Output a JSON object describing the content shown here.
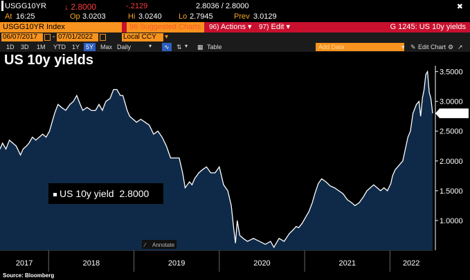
{
  "quote": {
    "ticker": "USGG10YR",
    "last": "↓ 2.8000",
    "change": "-.2129",
    "bid_ask": "2.8036 / 2.8000",
    "close_symbol": "✖"
  },
  "info": {
    "at_label": "At",
    "at_value": "16:25",
    "op_label": "Op",
    "op_value": "3.0203",
    "hi_label": "Hi",
    "hi_value": "3.0240",
    "lo_label": "Lo",
    "lo_value": "2.7945",
    "prev_label": "Prev",
    "prev_value": "3.0129"
  },
  "toolbar": {
    "index_label": "USGG10YR Index",
    "suggested_num": "96",
    "suggested_label": "Suggested Charts",
    "actions_num": "96)",
    "actions_label": "Actions",
    "edit_num": "97)",
    "edit_label": "Edit",
    "graph_label": "G 1245: US 10y yields"
  },
  "daterange": {
    "start": "06/07/2017",
    "end": "07/01/2022",
    "currency": "Local CCY"
  },
  "controls": {
    "periods": [
      "1D",
      "3D",
      "1M",
      "YTD",
      "1Y",
      "5Y",
      "Max"
    ],
    "active_period": "5Y",
    "frequency": "Daily",
    "table_label": "Table",
    "add_data_placeholder": "Add Data",
    "edit_chart_label": "Edit Chart"
  },
  "annotate_label": "Annotate",
  "source": "Source: Bloomberg",
  "chart_data": {
    "type": "area",
    "title": "US 10y yields",
    "legend_label": "US 10y yield",
    "legend_value": "2.8000",
    "last_value_label": "2.8000",
    "ylim": [
      0.5,
      3.6
    ],
    "yticks": [
      1.0,
      1.5,
      2.0,
      2.5,
      3.0,
      3.5
    ],
    "ytick_labels": [
      "1.0000",
      "1.5000",
      "2.0000",
      "2.5000",
      "3.0000",
      "3.5000"
    ],
    "xlim": [
      2017.43,
      2022.5
    ],
    "xtick_labels": [
      "2017",
      "2018",
      "2019",
      "2020",
      "2021",
      "2022"
    ],
    "x_boundaries": [
      2018.0,
      2019.0,
      2020.0,
      2021.0,
      2022.0
    ],
    "colors": {
      "fill": "#0f2a48",
      "line": "#ffffff"
    },
    "grid": false,
    "legend_position": "middle-left",
    "series": [
      {
        "name": "US 10y yield",
        "x": [
          2017.43,
          2017.46,
          2017.5,
          2017.54,
          2017.58,
          2017.62,
          2017.67,
          2017.7,
          2017.74,
          2017.77,
          2017.81,
          2017.85,
          2017.89,
          2017.93,
          2017.97,
          2018.01,
          2018.04,
          2018.07,
          2018.11,
          2018.15,
          2018.2,
          2018.25,
          2018.29,
          2018.33,
          2018.37,
          2018.4,
          2018.45,
          2018.5,
          2018.55,
          2018.59,
          2018.63,
          2018.67,
          2018.72,
          2018.76,
          2018.8,
          2018.84,
          2018.87,
          2018.89,
          2018.92,
          2018.95,
          2018.99,
          2019.03,
          2019.08,
          2019.13,
          2019.18,
          2019.23,
          2019.28,
          2019.33,
          2019.38,
          2019.43,
          2019.48,
          2019.53,
          2019.57,
          2019.6,
          2019.65,
          2019.68,
          2019.71,
          2019.76,
          2019.8,
          2019.85,
          2019.9,
          2019.95,
          2020.0,
          2020.05,
          2020.1,
          2020.14,
          2020.17,
          2020.19,
          2020.21,
          2020.24,
          2020.28,
          2020.33,
          2020.4,
          2020.47,
          2020.54,
          2020.6,
          2020.64,
          2020.7,
          2020.76,
          2020.82,
          2020.87,
          2020.9,
          2020.93,
          2020.97,
          2021.01,
          2021.05,
          2021.09,
          2021.12,
          2021.16,
          2021.2,
          2021.25,
          2021.3,
          2021.35,
          2021.4,
          2021.45,
          2021.5,
          2021.55,
          2021.59,
          2021.64,
          2021.69,
          2021.73,
          2021.77,
          2021.81,
          2021.85,
          2021.89,
          2021.93,
          2021.97,
          2022.01,
          2022.03,
          2022.06,
          2022.09,
          2022.12,
          2022.15,
          2022.18,
          2022.21,
          2022.24,
          2022.27,
          2022.31,
          2022.34,
          2022.36,
          2022.38,
          2022.4,
          2022.42,
          2022.44,
          2022.46,
          2022.48,
          2022.5
        ],
        "values": [
          2.2,
          2.3,
          2.2,
          2.35,
          2.3,
          2.25,
          2.1,
          2.2,
          2.25,
          2.3,
          2.4,
          2.35,
          2.4,
          2.45,
          2.4,
          2.5,
          2.65,
          2.8,
          2.95,
          2.9,
          2.85,
          2.95,
          3.0,
          3.1,
          2.95,
          2.85,
          2.9,
          2.85,
          2.85,
          2.95,
          2.85,
          3.0,
          3.05,
          3.2,
          3.2,
          3.1,
          3.1,
          3.0,
          2.85,
          2.75,
          2.7,
          2.65,
          2.7,
          2.65,
          2.6,
          2.45,
          2.5,
          2.4,
          2.25,
          2.05,
          2.05,
          2.05,
          1.8,
          1.55,
          1.65,
          1.6,
          1.7,
          1.8,
          1.85,
          1.9,
          1.8,
          1.8,
          1.9,
          1.6,
          1.5,
          1.25,
          0.85,
          0.62,
          1.0,
          0.75,
          0.7,
          0.65,
          0.7,
          0.65,
          0.6,
          0.65,
          0.55,
          0.7,
          0.65,
          0.78,
          0.85,
          0.9,
          0.88,
          0.95,
          1.05,
          1.15,
          1.3,
          1.45,
          1.62,
          1.7,
          1.65,
          1.58,
          1.55,
          1.5,
          1.45,
          1.35,
          1.3,
          1.25,
          1.3,
          1.4,
          1.5,
          1.55,
          1.6,
          1.55,
          1.5,
          1.55,
          1.5,
          1.62,
          1.75,
          1.85,
          1.9,
          1.95,
          2.0,
          2.2,
          2.4,
          2.5,
          2.8,
          2.95,
          3.0,
          2.75,
          3.05,
          3.2,
          3.45,
          3.5,
          3.15,
          3.05,
          2.8
        ]
      }
    ]
  }
}
